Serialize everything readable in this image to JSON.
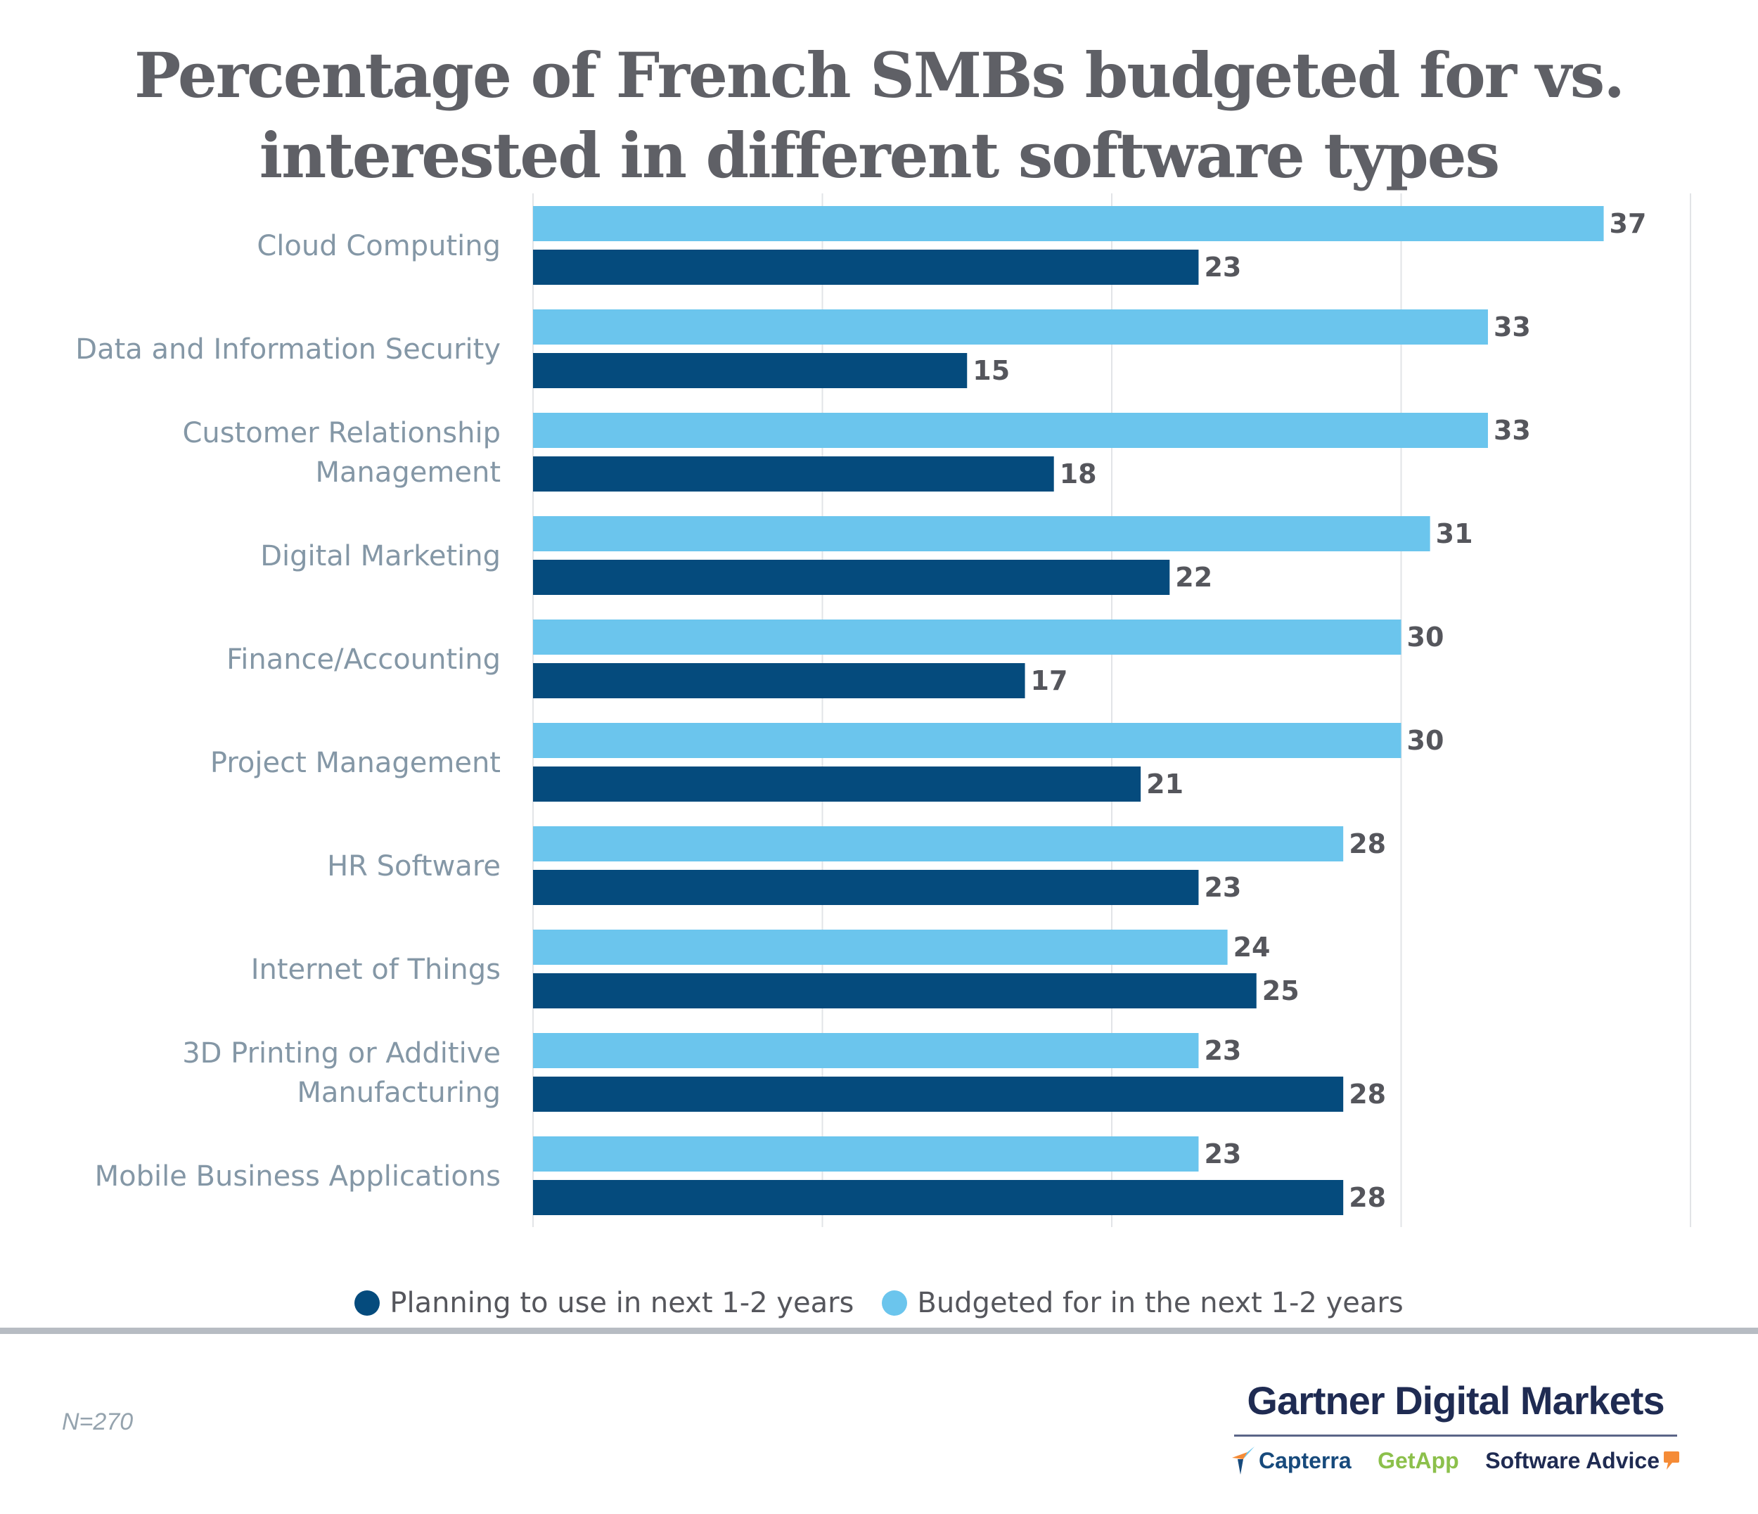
{
  "title_lines": [
    "Percentage of French SMBs budgeted for vs.",
    "interested in different software types"
  ],
  "chart_data": {
    "type": "bar",
    "orientation": "horizontal",
    "title": "Percentage of French SMBs budgeted for vs. interested in different software types",
    "xlabel": "",
    "ylabel": "",
    "xlim": [
      0,
      40
    ],
    "grid": true,
    "gridlines": [
      0,
      10,
      20,
      30,
      40
    ],
    "legend_position": "bottom",
    "categories": [
      [
        "Cloud Computing"
      ],
      [
        "Data and Information Security"
      ],
      [
        "Customer Relationship",
        "Management"
      ],
      [
        "Digital Marketing"
      ],
      [
        "Finance/Accounting"
      ],
      [
        "Project Management"
      ],
      [
        "HR Software"
      ],
      [
        "Internet of Things"
      ],
      [
        "3D Printing or Additive",
        "Manufacturing"
      ],
      [
        "Mobile Business Applications"
      ]
    ],
    "series": [
      {
        "name": "Budgeted for in the next 1-2 years",
        "color": "#6bc5ed",
        "values": [
          37,
          33,
          33,
          31,
          30,
          30,
          28,
          24,
          23,
          23
        ]
      },
      {
        "name": "Planning to use in next 1-2 years",
        "color": "#054b7d",
        "values": [
          23,
          15,
          18,
          22,
          17,
          21,
          23,
          25,
          28,
          28
        ]
      }
    ]
  },
  "legend": [
    {
      "label": "Planning to use in next 1-2 years",
      "color": "#054b7d"
    },
    {
      "label": "Budgeted for in the next 1-2 years",
      "color": "#6bc5ed"
    }
  ],
  "footnote": "N=270",
  "brand": {
    "main": "Gartner Digital Markets",
    "subs": [
      "Capterra",
      "GetApp",
      "Software Advice"
    ]
  },
  "colors": {
    "grid": "#e2e4e7",
    "title": "#5f6066",
    "label": "#8497a6"
  }
}
